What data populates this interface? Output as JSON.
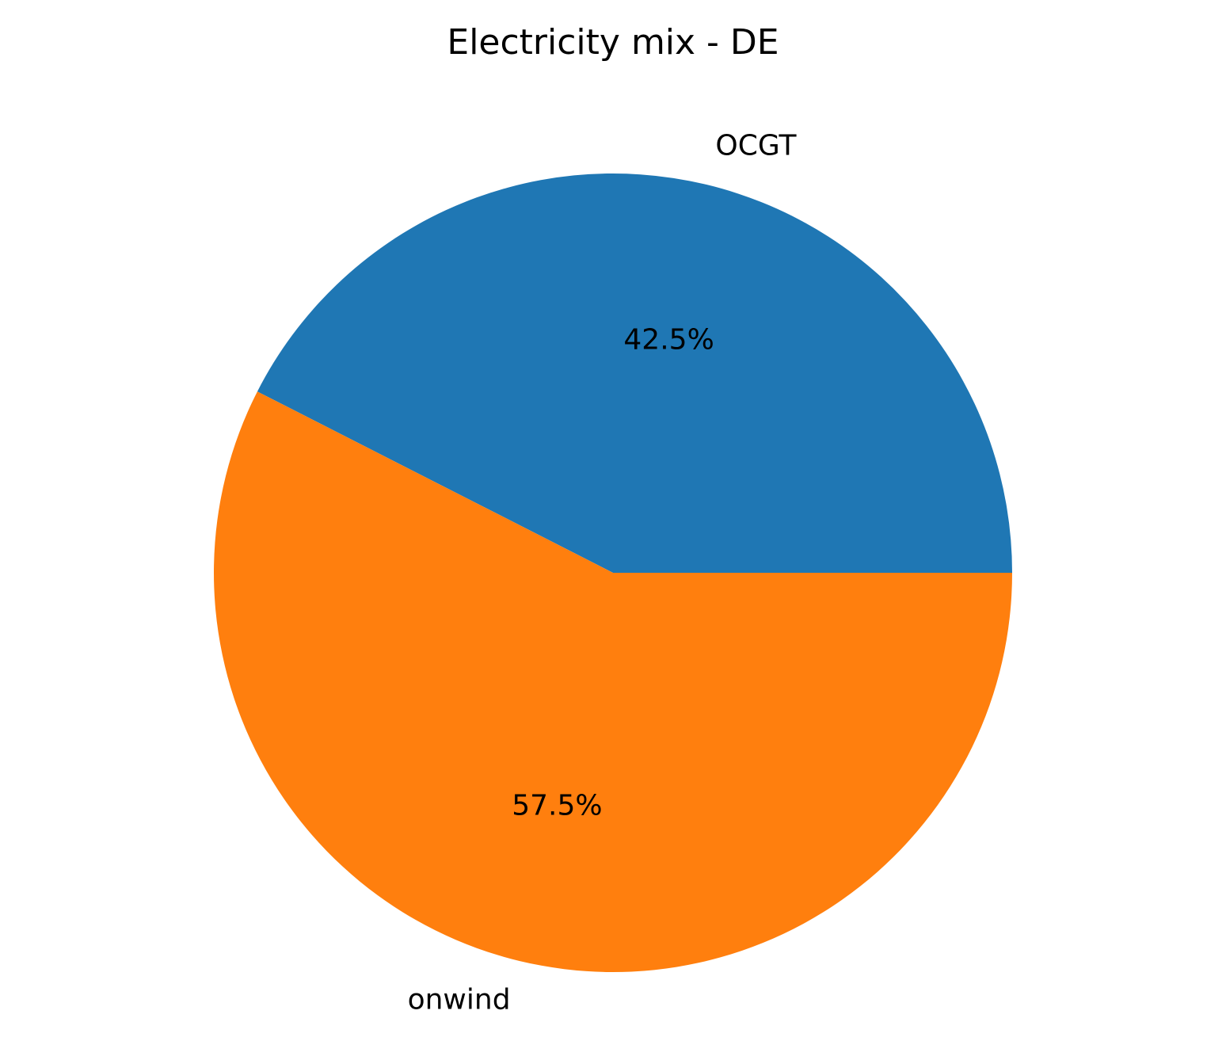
{
  "chart_data": {
    "type": "pie",
    "title": "Electricity mix - DE",
    "slices": [
      {
        "label": "OCGT",
        "value": 42.5,
        "pct_text": "42.5%",
        "color": "#1f77b4"
      },
      {
        "label": "onwind",
        "value": 57.5,
        "pct_text": "57.5%",
        "color": "#ff7f0e"
      }
    ]
  }
}
